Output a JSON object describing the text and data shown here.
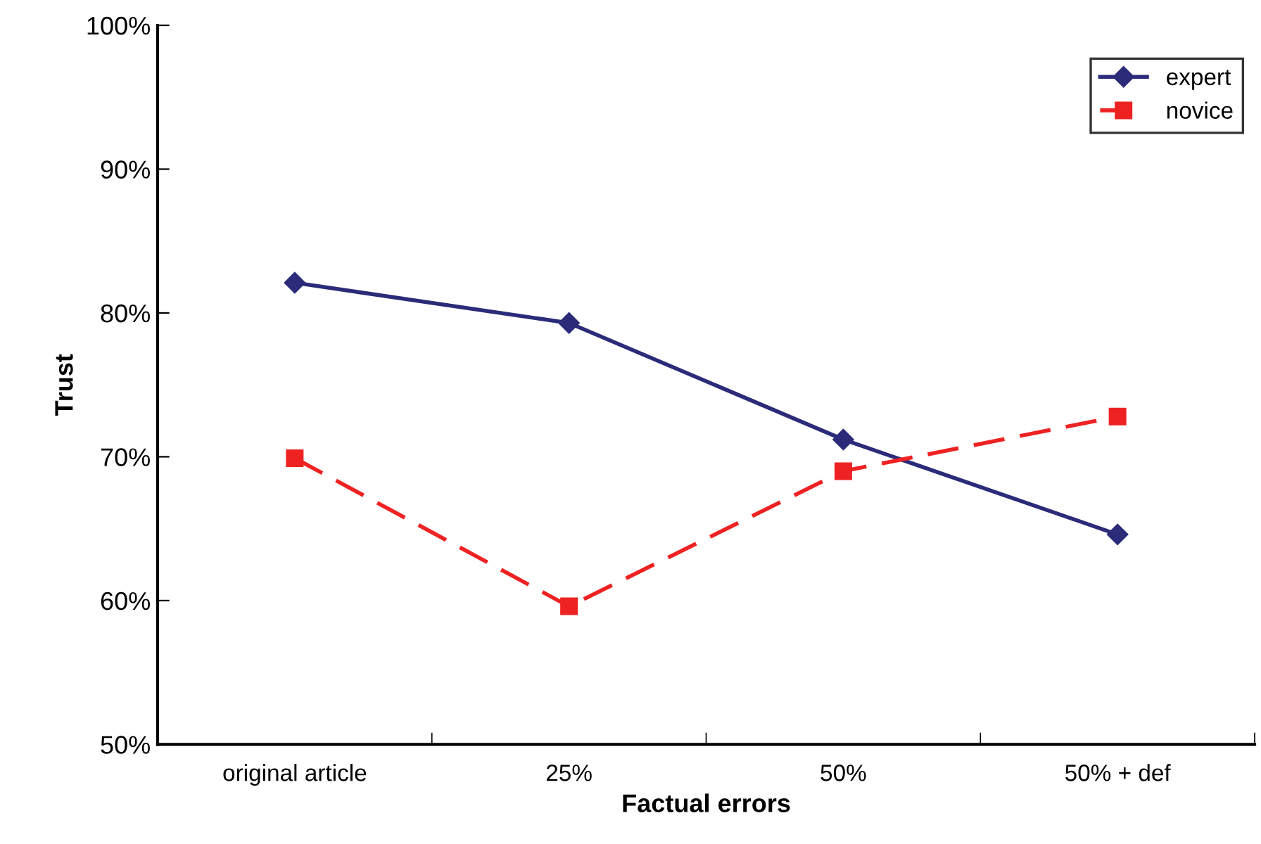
{
  "chart_data": {
    "type": "line",
    "xlabel": "Factual errors",
    "ylabel": "Trust",
    "categories": [
      "original article",
      "25%",
      "50%",
      "50% + def"
    ],
    "series": [
      {
        "name": "expert",
        "color": "#2b2b7a",
        "values": [
          82.1,
          79.3,
          71.2,
          64.6
        ],
        "marker": "diamond",
        "line_style": "solid"
      },
      {
        "name": "novice",
        "color": "#ee2222",
        "values": [
          69.9,
          59.6,
          69.0,
          72.8
        ],
        "marker": "square",
        "line_style": "dashed"
      }
    ],
    "ylim": [
      50,
      100
    ],
    "yticks": [
      {
        "value": 50,
        "label": "50%"
      },
      {
        "value": 60,
        "label": "60%"
      },
      {
        "value": 70,
        "label": "70%"
      },
      {
        "value": 80,
        "label": "80%"
      },
      {
        "value": 90,
        "label": "90%"
      },
      {
        "value": 100,
        "label": "100%"
      }
    ],
    "grid": false,
    "legend": "top right"
  }
}
